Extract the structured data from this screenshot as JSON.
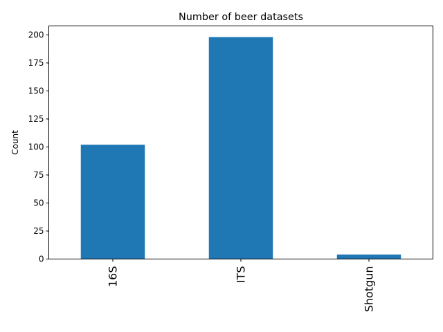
{
  "chart_data": {
    "type": "bar",
    "title": "Number of beer datasets",
    "xlabel": "",
    "ylabel": "Count",
    "categories": [
      "16S",
      "ITS",
      "Shotgun"
    ],
    "values": [
      102,
      198,
      4
    ],
    "ylim": [
      0,
      208
    ],
    "yticks": [
      0,
      25,
      50,
      75,
      100,
      125,
      150,
      175,
      200
    ],
    "bar_color": "#1f77b4",
    "grid": false,
    "legend": "none"
  }
}
